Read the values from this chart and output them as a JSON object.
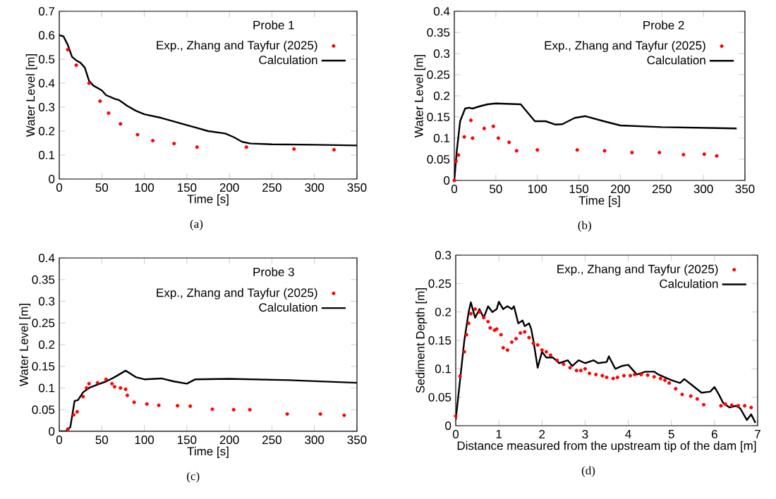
{
  "chart_data": [
    {
      "type": "line",
      "title": "Probe 1",
      "xlabel": "Time [s]",
      "ylabel": "Water Level [m]",
      "annotations": [
        "(a)"
      ],
      "legend": "top right",
      "xlim": [
        0,
        350
      ],
      "xticks": [
        0,
        50,
        100,
        150,
        200,
        250,
        300,
        350
      ],
      "ylim": [
        0,
        0.7
      ],
      "yticks": [
        0,
        0.1,
        0.2,
        0.3,
        0.4,
        0.5,
        0.6,
        0.7
      ],
      "series": [
        {
          "name": "Exp., Zhang and Tayfur (2025)",
          "type": "scatter",
          "marker": "circle",
          "color": "#ff0000",
          "x": [
            10,
            20,
            35,
            48,
            58,
            72,
            92,
            110,
            135,
            162,
            220,
            276,
            323
          ],
          "values": [
            0.54,
            0.475,
            0.4,
            0.325,
            0.275,
            0.23,
            0.185,
            0.16,
            0.148,
            0.133,
            0.133,
            0.125,
            0.122
          ]
        },
        {
          "name": "Calculation",
          "type": "line",
          "marker": "none",
          "color": "#000000",
          "x": [
            0,
            5,
            10,
            15,
            20,
            25,
            30,
            35,
            40,
            50,
            55,
            65,
            70,
            80,
            90,
            100,
            120,
            140,
            160,
            175,
            195,
            205,
            215,
            225,
            250,
            300,
            350
          ],
          "values": [
            0.6,
            0.595,
            0.56,
            0.51,
            0.495,
            0.485,
            0.465,
            0.41,
            0.39,
            0.37,
            0.35,
            0.335,
            0.33,
            0.305,
            0.285,
            0.27,
            0.255,
            0.235,
            0.215,
            0.2,
            0.19,
            0.175,
            0.155,
            0.148,
            0.145,
            0.143,
            0.14
          ]
        }
      ]
    },
    {
      "type": "line",
      "title": "Probe 2",
      "xlabel": "Time [s]",
      "ylabel": "Water Level [m]",
      "annotations": [
        "(b)"
      ],
      "legend": "top right",
      "xlim": [
        0,
        350
      ],
      "xticks": [
        0,
        50,
        100,
        150,
        200,
        250,
        300,
        350
      ],
      "ylim": [
        0,
        0.4
      ],
      "yticks": [
        0,
        0.05,
        0.1,
        0.15,
        0.2,
        0.25,
        0.3,
        0.35,
        0.4
      ],
      "series": [
        {
          "name": "Exp., Zhang and Tayfur (2025)",
          "type": "scatter",
          "marker": "circle",
          "color": "#ff0000",
          "x": [
            0,
            2,
            5,
            12,
            20,
            22,
            36,
            47,
            53,
            66,
            75,
            100,
            148,
            181,
            214,
            247,
            276,
            301,
            316
          ],
          "values": [
            0,
            0.045,
            0.06,
            0.103,
            0.142,
            0.1,
            0.123,
            0.128,
            0.1,
            0.09,
            0.07,
            0.072,
            0.072,
            0.07,
            0.066,
            0.066,
            0.061,
            0.062,
            0.058
          ]
        },
        {
          "name": "Calculation",
          "type": "line",
          "marker": "none",
          "color": "#000000",
          "x": [
            0,
            3,
            7,
            13,
            18,
            22,
            30,
            40,
            50,
            80,
            97,
            110,
            122,
            130,
            145,
            158,
            180,
            200,
            250,
            340
          ],
          "values": [
            0,
            0.07,
            0.14,
            0.17,
            0.172,
            0.17,
            0.175,
            0.18,
            0.182,
            0.18,
            0.14,
            0.14,
            0.132,
            0.133,
            0.148,
            0.152,
            0.14,
            0.13,
            0.126,
            0.123
          ]
        }
      ]
    },
    {
      "type": "line",
      "title": "Probe 3",
      "xlabel": "Time [s]",
      "ylabel": "Water Level [m]",
      "annotations": [
        "(c)"
      ],
      "legend": "top right",
      "xlim": [
        0,
        350
      ],
      "xticks": [
        0,
        50,
        100,
        150,
        200,
        250,
        300,
        350
      ],
      "ylim": [
        0,
        0.4
      ],
      "yticks": [
        0,
        0.05,
        0.1,
        0.15,
        0.2,
        0.25,
        0.3,
        0.35,
        0.4
      ],
      "series": [
        {
          "name": "Exp., Zhang and Tayfur (2025)",
          "type": "scatter",
          "marker": "circle",
          "color": "#ff0000",
          "x": [
            10,
            17,
            21,
            28,
            32,
            35,
            45,
            55,
            62,
            65,
            72,
            78,
            80,
            88,
            103,
            117,
            139,
            154,
            180,
            205,
            224,
            268,
            307,
            335
          ],
          "values": [
            0.005,
            0.038,
            0.045,
            0.08,
            0.1,
            0.11,
            0.112,
            0.12,
            0.11,
            0.103,
            0.1,
            0.097,
            0.083,
            0.067,
            0.063,
            0.06,
            0.059,
            0.058,
            0.051,
            0.05,
            0.05,
            0.04,
            0.04,
            0.037
          ]
        },
        {
          "name": "Calculation",
          "type": "line",
          "marker": "none",
          "color": "#000000",
          "x": [
            0,
            8,
            13,
            18,
            22,
            28,
            35,
            45,
            55,
            65,
            78,
            90,
            100,
            120,
            135,
            150,
            160,
            200,
            270,
            350
          ],
          "values": [
            0,
            0,
            0.01,
            0.07,
            0.072,
            0.09,
            0.1,
            0.108,
            0.115,
            0.125,
            0.14,
            0.125,
            0.12,
            0.122,
            0.115,
            0.11,
            0.12,
            0.121,
            0.118,
            0.112
          ]
        }
      ]
    },
    {
      "type": "line",
      "xlabel": "Distance measured from the upstream tip of the dam [m]",
      "ylabel": "Sediment Depth [m]",
      "annotations": [
        "(d)"
      ],
      "legend": "top right",
      "xlim": [
        0,
        7
      ],
      "xticks": [
        0,
        1,
        2,
        3,
        4,
        5,
        6,
        7
      ],
      "ylim": [
        0,
        0.3
      ],
      "yticks": [
        0,
        0.05,
        0.1,
        0.15,
        0.2,
        0.25,
        0.3
      ],
      "series": [
        {
          "name": "Exp., Zhang and Tayfur (2025)",
          "type": "scatter",
          "marker": "circle",
          "color": "#ff0000",
          "x": [
            0,
            0.1,
            0.2,
            0.25,
            0.3,
            0.35,
            0.45,
            0.55,
            0.65,
            0.75,
            0.8,
            0.9,
            0.95,
            1.05,
            1.1,
            1.2,
            1.3,
            1.4,
            1.5,
            1.6,
            1.7,
            1.8,
            1.9,
            2.0,
            2.1,
            2.2,
            2.35,
            2.5,
            2.65,
            2.8,
            2.9,
            3.0,
            3.1,
            3.25,
            3.4,
            3.5,
            3.65,
            3.75,
            3.9,
            4.05,
            4.15,
            4.3,
            4.45,
            4.6,
            4.75,
            4.85,
            4.95,
            5.1,
            5.25,
            5.45,
            5.6,
            5.75,
            6.15,
            6.25,
            6.4,
            6.55,
            6.7,
            6.85
          ],
          "values": [
            0.017,
            0.087,
            0.13,
            0.16,
            0.18,
            0.197,
            0.205,
            0.2,
            0.19,
            0.183,
            0.172,
            0.168,
            0.17,
            0.16,
            0.137,
            0.133,
            0.147,
            0.153,
            0.163,
            0.165,
            0.155,
            0.145,
            0.142,
            0.133,
            0.13,
            0.124,
            0.115,
            0.108,
            0.102,
            0.097,
            0.097,
            0.1,
            0.092,
            0.09,
            0.088,
            0.085,
            0.083,
            0.085,
            0.088,
            0.088,
            0.09,
            0.09,
            0.089,
            0.086,
            0.083,
            0.08,
            0.075,
            0.065,
            0.055,
            0.052,
            0.047,
            0.037,
            0.035,
            0.038,
            0.036,
            0.035,
            0.035,
            0.032
          ]
        },
        {
          "name": "Calculation",
          "type": "line",
          "marker": "none",
          "color": "#000000",
          "x": [
            0,
            0.1,
            0.2,
            0.3,
            0.35,
            0.45,
            0.55,
            0.65,
            0.75,
            0.85,
            0.95,
            1.0,
            1.1,
            1.2,
            1.3,
            1.35,
            1.45,
            1.55,
            1.6,
            1.7,
            1.75,
            1.8,
            1.9,
            2.0,
            2.1,
            2.25,
            2.4,
            2.6,
            2.7,
            2.85,
            3.0,
            3.2,
            3.3,
            3.5,
            3.55,
            3.7,
            3.85,
            4.0,
            4.2,
            4.4,
            4.6,
            4.7,
            4.85,
            5.0,
            5.2,
            5.3,
            5.5,
            5.7,
            5.9,
            6.0,
            6.1,
            6.2,
            6.35,
            6.5,
            6.6,
            6.75,
            6.85,
            6.95
          ],
          "values": [
            0.01,
            0.08,
            0.15,
            0.2,
            0.217,
            0.19,
            0.205,
            0.19,
            0.21,
            0.2,
            0.205,
            0.218,
            0.205,
            0.21,
            0.205,
            0.21,
            0.18,
            0.185,
            0.175,
            0.18,
            0.17,
            0.15,
            0.102,
            0.13,
            0.12,
            0.12,
            0.11,
            0.115,
            0.105,
            0.115,
            0.11,
            0.115,
            0.11,
            0.112,
            0.122,
            0.1,
            0.105,
            0.107,
            0.09,
            0.095,
            0.095,
            0.09,
            0.085,
            0.08,
            0.075,
            0.082,
            0.07,
            0.058,
            0.06,
            0.068,
            0.055,
            0.04,
            0.032,
            0.035,
            0.03,
            0.01,
            0.02,
            0.005
          ]
        }
      ]
    }
  ]
}
